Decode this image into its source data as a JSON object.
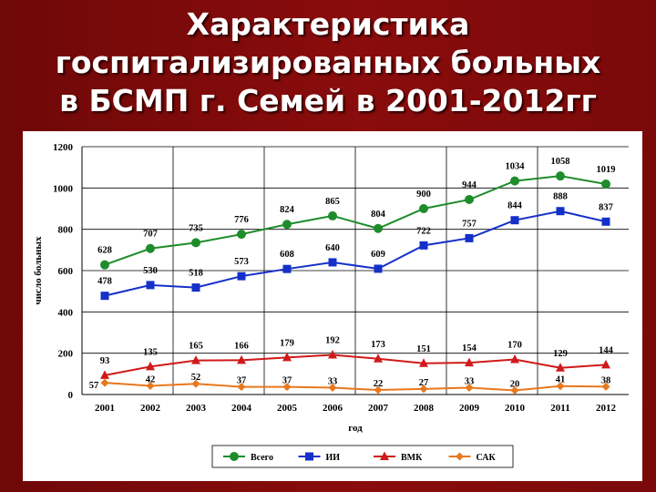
{
  "slide": {
    "title_lines": [
      "Характеристика",
      "госпитализированных больных",
      "в БСМП г. Семей в 2001-2012гг"
    ]
  },
  "chart_data": {
    "type": "line",
    "title": "",
    "xlabel": "год",
    "ylabel": "число больных",
    "ylim": [
      0,
      1200
    ],
    "yticks": [
      0,
      200,
      400,
      600,
      800,
      1000,
      1200
    ],
    "categories": [
      "2001",
      "2002",
      "2003",
      "2004",
      "2005",
      "2006",
      "2007",
      "2008",
      "2009",
      "2010",
      "2011",
      "2012"
    ],
    "legend_position": "bottom",
    "series": [
      {
        "name": "Всего",
        "color": "#1e8c2b",
        "marker": "circle",
        "values": [
          628,
          707,
          735,
          776,
          824,
          865,
          804,
          900,
          944,
          1034,
          1058,
          1019
        ]
      },
      {
        "name": "ИИ",
        "color": "#1530c8",
        "marker": "square",
        "values": [
          478,
          530,
          518,
          573,
          608,
          640,
          609,
          722,
          757,
          844,
          888,
          837
        ]
      },
      {
        "name": "ВМК",
        "color": "#d01a1a",
        "marker": "triangle",
        "values": [
          93,
          135,
          165,
          166,
          179,
          192,
          173,
          151,
          154,
          170,
          129,
          144
        ]
      },
      {
        "name": "САК",
        "color": "#e8781e",
        "marker": "diamond",
        "values": [
          57,
          42,
          52,
          37,
          37,
          33,
          22,
          27,
          33,
          20,
          41,
          38
        ]
      }
    ]
  }
}
